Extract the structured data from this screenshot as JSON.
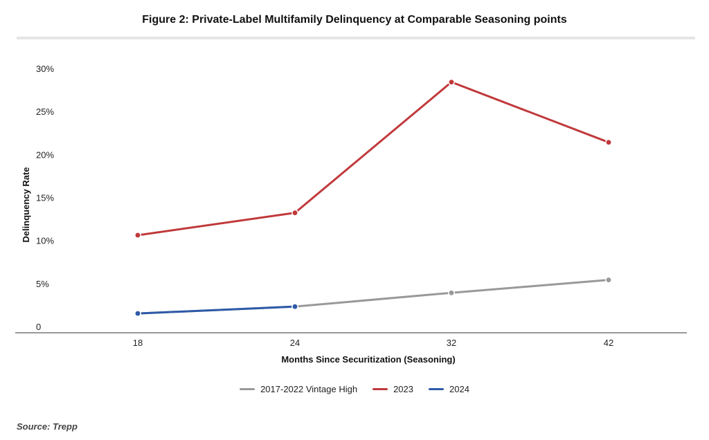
{
  "chart_data": {
    "type": "line",
    "title": "Figure 2: Private-Label Multifamily Delinquency at Comparable Seasoning points",
    "xlabel": "Months Since Securitization (Seasoning)",
    "ylabel": "Delinquency Rate",
    "categories": [
      "18",
      "24",
      "32",
      "42"
    ],
    "y_ticks": [
      "0",
      "5%",
      "10%",
      "15%",
      "20%",
      "25%",
      "30%"
    ],
    "ylim": [
      0,
      30
    ],
    "grid": false,
    "legend_position": "bottom-center",
    "series": [
      {
        "name": "2017-2022 Vintage High",
        "color": "#999999",
        "values": [
          1.6,
          2.4,
          4.0,
          5.5
        ]
      },
      {
        "name": "2023",
        "color": "#c0393b",
        "values": [
          10.7,
          13.3,
          28.5,
          21.5
        ]
      },
      {
        "name": "2024",
        "color": "#2e5aa8",
        "values": [
          1.6,
          2.4,
          null,
          null
        ]
      }
    ],
    "source": "Source: Trepp"
  }
}
